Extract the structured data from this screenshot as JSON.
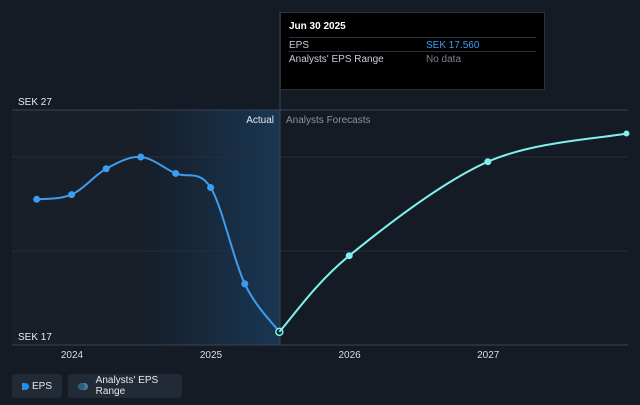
{
  "tooltip": {
    "title": "Jun 30 2025",
    "rows": [
      {
        "label": "EPS",
        "value": "SEK 17.560",
        "value_color": "#3d9cf0"
      },
      {
        "label": "Analysts' EPS Range",
        "value": "No data",
        "value_color": "#7b8390"
      }
    ]
  },
  "regions": {
    "actual_label": "Actual",
    "forecast_label": "Analysts Forecasts"
  },
  "legend": {
    "eps_label": "EPS",
    "range_label": "Analysts' EPS Range"
  },
  "colors": {
    "actual": "#3d9cf0",
    "forecast": "#7ff0ef",
    "background": "#151b24"
  },
  "chart_data": {
    "type": "line",
    "ylim": [
      17,
      27
    ],
    "y_ticks": [
      {
        "value": 27,
        "label": "SEK 27"
      },
      {
        "value": 17,
        "label": "SEK 17"
      }
    ],
    "x_ticks": [
      {
        "date": "2024-01-01",
        "label": "2024"
      },
      {
        "date": "2025-01-01",
        "label": "2025"
      },
      {
        "date": "2026-01-01",
        "label": "2026"
      },
      {
        "date": "2027-01-01",
        "label": "2027"
      }
    ],
    "grid": true,
    "divider_date": "2025-06-30",
    "series": [
      {
        "name": "EPS",
        "kind": "actual",
        "points": [
          {
            "x": "2023-09-30",
            "y": 23.2
          },
          {
            "x": "2023-12-31",
            "y": 23.4
          },
          {
            "x": "2024-03-31",
            "y": 24.5
          },
          {
            "x": "2024-06-30",
            "y": 25.0
          },
          {
            "x": "2024-09-30",
            "y": 24.3
          },
          {
            "x": "2024-12-31",
            "y": 23.7
          },
          {
            "x": "2025-03-31",
            "y": 19.6
          },
          {
            "x": "2025-06-30",
            "y": 17.56
          }
        ]
      },
      {
        "name": "Analysts Forecasts",
        "kind": "forecast",
        "points": [
          {
            "x": "2025-06-30",
            "y": 17.56
          },
          {
            "x": "2025-12-31",
            "y": 20.8
          },
          {
            "x": "2026-12-31",
            "y": 24.8
          },
          {
            "x": "2027-12-31",
            "y": 26.0
          }
        ]
      }
    ]
  }
}
